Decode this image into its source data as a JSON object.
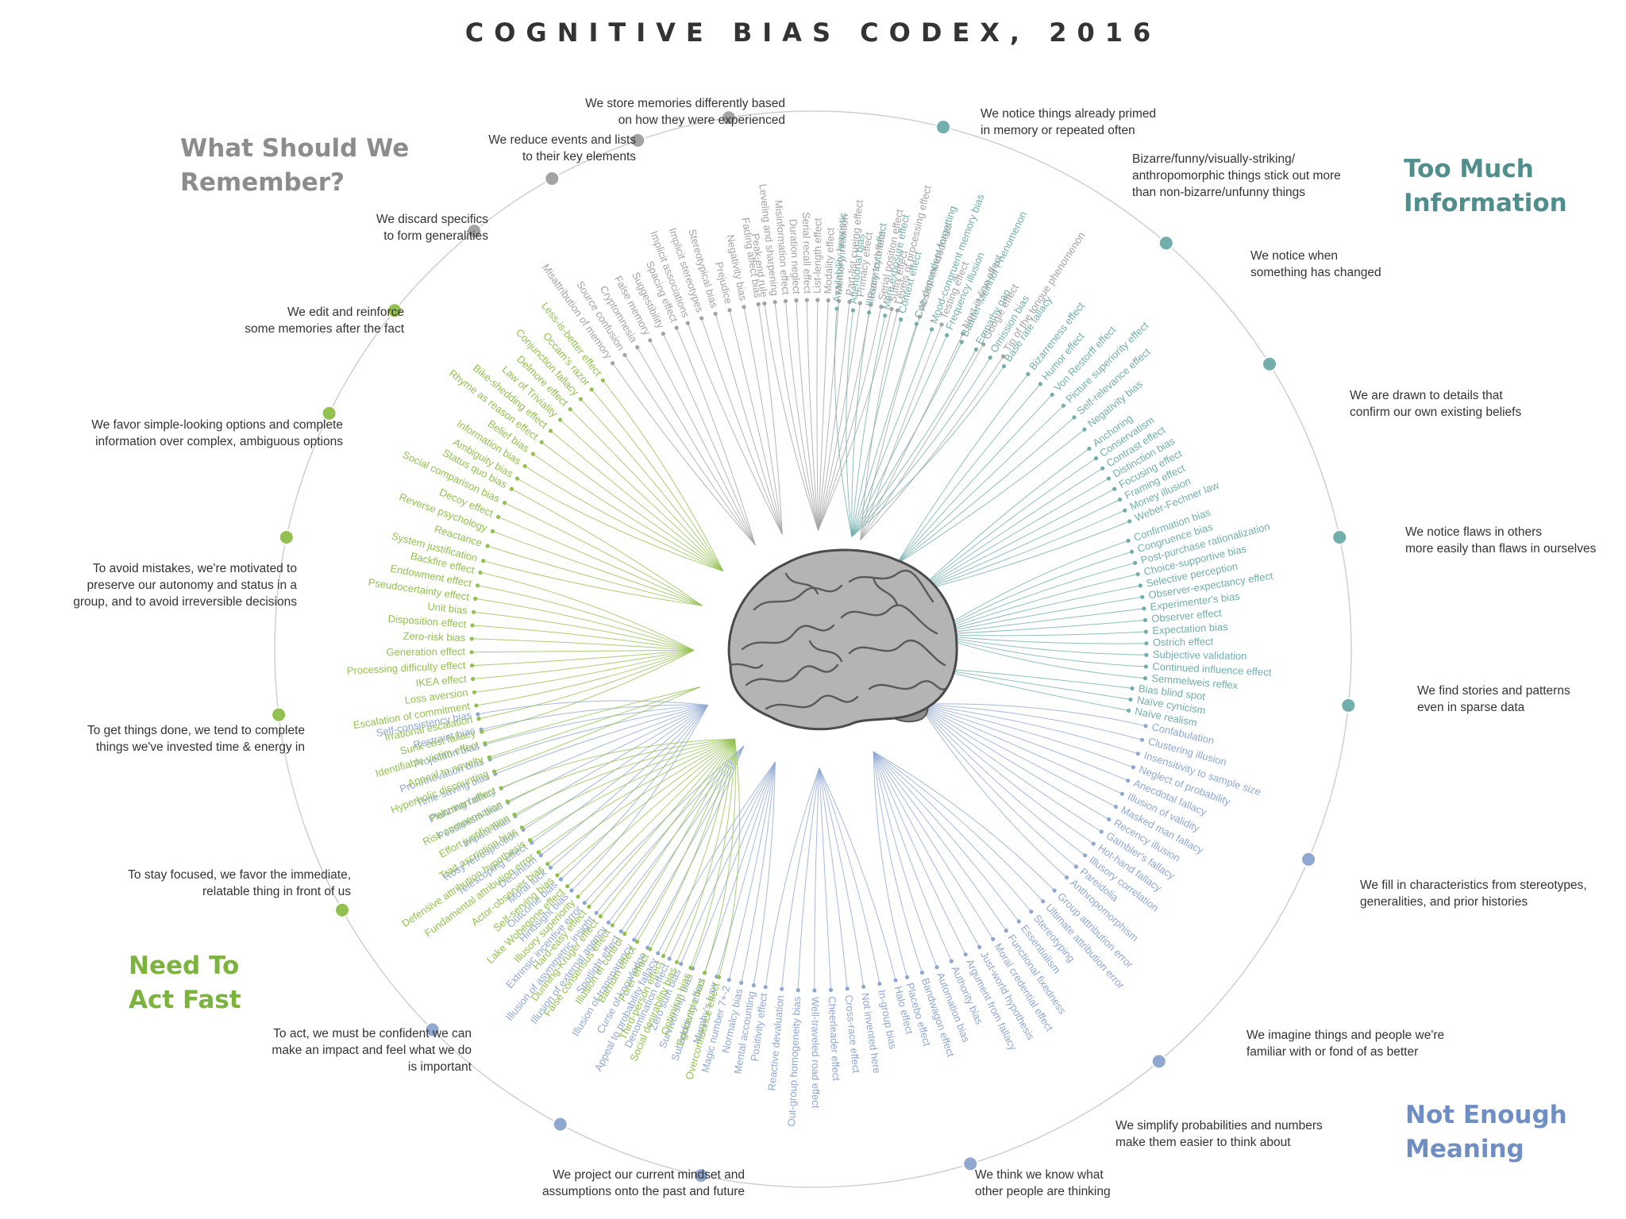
{
  "title": "COGNITIVE BIAS CODEX, 2016",
  "colors": {
    "remember": "#a3a3a3",
    "remember_title": "#8c8c8c",
    "info": "#71aeac",
    "info_title": "#4f8e8c",
    "meaning": "#8fa8d2",
    "meaning_title": "#6f8fc4",
    "act": "#93c14f",
    "act_title": "#7cb33c",
    "text": "#333333"
  },
  "quadrants": {
    "remember": "What Should We\nRemember?",
    "info": "Too Much\nInformation",
    "meaning": "Not Enough\nMeaning",
    "act": "Need To\nAct Fast"
  },
  "groups": [
    {
      "quad": "info",
      "subtitle": "We notice things already primed\nin memory or repeated often",
      "biases": [
        "Availability heuristic",
        "Attentional bias",
        "Illusory truth effect",
        "Mere exposure effect",
        "Context effect",
        "Cue-dependent forgetting",
        "Mood-congruent memory bias",
        "Frequency illusion",
        "Baader-Meinhof Phenomenon",
        "Empathy gap",
        "Omission bias",
        "Base rate fallacy"
      ]
    },
    {
      "quad": "info",
      "subtitle": "Bizarre/funny/visually-striking/\nanthropomorphic things stick out more\nthan non-bizarre/unfunny things",
      "biases": [
        "Bizarreness effect",
        "Humor effect",
        "Von Restorff effect",
        "Picture superiority effect",
        "Self-relevance effect",
        "Negativity bias"
      ]
    },
    {
      "quad": "info",
      "subtitle": "We notice when\nsomething has changed",
      "biases": [
        "Anchoring",
        "Conservatism",
        "Contrast effect",
        "Distinction bias",
        "Focusing effect",
        "Framing effect",
        "Money illusion",
        "Weber-Fechner law"
      ]
    },
    {
      "quad": "info",
      "subtitle": "We are drawn to details that\nconfirm our own existing beliefs",
      "biases": [
        "Confirmation bias",
        "Congruence bias",
        "Post-purchase rationalization",
        "Choice-supportive bias",
        "Selective perception",
        "Observer-expectancy effect",
        "Experimenter's bias",
        "Observer effect",
        "Expectation bias",
        "Ostrich effect",
        "Subjective validation",
        "Continued influence effect",
        "Semmelweis reflex"
      ]
    },
    {
      "quad": "info",
      "subtitle": "We notice flaws in others\nmore easily than flaws in ourselves",
      "biases": [
        "Bias blind spot",
        "Naïve cynicism",
        "Naïve realism"
      ]
    },
    {
      "quad": "meaning",
      "subtitle": "We find stories and patterns\neven in sparse data",
      "biases": [
        "Confabulation",
        "Clustering illusion",
        "Insensitivity to sample size",
        "Neglect of probability",
        "Anecdotal fallacy",
        "Illusion of validity",
        "Masked man fallacy",
        "Recency illusion",
        "Gambler's fallacy",
        "Hot-hand fallacy",
        "Illusory correlation",
        "Pareidolia",
        "Anthropomorphism"
      ]
    },
    {
      "quad": "meaning",
      "subtitle": "We fill in characteristics from stereotypes,\ngeneralities, and prior histories",
      "biases": [
        "Group attribution error",
        "Ultimate attribution error",
        "Stereotyping",
        "Essentialism",
        "Functional fixedness",
        "Moral credential effect",
        "Just-world hypothesis",
        "Argument from fallacy",
        "Authority bias",
        "Automation bias",
        "Bandwagon effect",
        "Placebo effect"
      ]
    },
    {
      "quad": "meaning",
      "subtitle": "We imagine things and people we're\nfamiliar with or fond of as better",
      "biases": [
        "Halo effect",
        "In-group bias",
        "Not invented here",
        "Cross-race effect",
        "Cheerleader effect",
        "Well-traveled road effect",
        "Out-group homogeneity bias",
        "Reactive devaluation",
        "Positivity effect"
      ]
    },
    {
      "quad": "meaning",
      "subtitle": "We simplify probabilities and numbers\nmake them easier to think about",
      "biases": [
        "Mental accounting",
        "Normalcy bias",
        "Magic number 7+-2",
        "Murphy's Law",
        "Subadditivity effect",
        "Survivorship bias",
        "Zero sum bias",
        "Denomination effect",
        "Appeal to probability fallacy"
      ]
    },
    {
      "quad": "meaning",
      "subtitle": "We think we know what\nother people are thinking",
      "biases": [
        "Curse of knowledge",
        "Illusion of transparency",
        "Spotlight effect",
        "Illusion of external agency",
        "Illusion of asymmetric insight",
        "Extrinsic incentive error"
      ]
    },
    {
      "quad": "meaning",
      "subtitle": "We project our current mindset and\nassumptions onto the past and future",
      "biases": [
        "Hindsight bias",
        "Outcome bias",
        "Moral luck",
        "Declinism",
        "Telescoping effect",
        "Rosy retrospection",
        "Impact bias",
        "Pessimism bias",
        "Planning fallacy",
        "Time-saving bias",
        "Pro-innovation bias",
        "Projection bias",
        "Restraint bias",
        "Self-consistency bias"
      ]
    },
    {
      "quad": "act",
      "subtitle": "To act, we must be confident we can\nmake an impact and feel what we do\nis important",
      "biases": [
        "Overconfidence effect",
        "Egocentric bias",
        "Optimism bias",
        "Social desirability bias",
        "Third-person effect",
        "Forer effect",
        "Barnum effect",
        "Illusion of control",
        "False consensus effect",
        "Dunning-Kruger effect",
        "Hard-easy effect",
        "Illusory superiority",
        "Lake Wobegone effect",
        "Self-serving bias",
        "Actor-observer bias",
        "Fundamental attribution error",
        "Defensive attribution hypothesis",
        "Trait ascription bias",
        "Effort justification",
        "Risk compensation",
        "Peltzman effect"
      ]
    },
    {
      "quad": "act",
      "subtitle": "To stay focused, we favor the immediate,\nrelatable thing in front of us",
      "biases": [
        "Hyperbolic discounting",
        "Appeal to novelty",
        "Identifiable victim effect"
      ]
    },
    {
      "quad": "act",
      "subtitle": "To get things done, we tend to complete\nthings we've invested time & energy in",
      "biases": [
        "Sunk cost fallacy",
        "Irrational escalation",
        "Escalation of commitment",
        "Loss aversion",
        "IKEA effect",
        "Processing difficulty effect",
        "Generation effect",
        "Zero-risk bias",
        "Disposition effect",
        "Unit bias",
        "Pseudocertainty effect",
        "Endowment effect",
        "Backfire effect"
      ]
    },
    {
      "quad": "act",
      "subtitle": "To avoid mistakes, we're motivated to\npreserve our autonomy and status in a\ngroup, and to avoid irreversible decisions",
      "biases": [
        "System justification",
        "Reactance",
        "Reverse psychology",
        "Decoy effect",
        "Social comparison bias",
        "Status quo bias"
      ]
    },
    {
      "quad": "act",
      "subtitle": "We favor simple-looking options and complete\ninformation over complex, ambiguous options",
      "biases": [
        "Ambiguity bias",
        "Information bias",
        "Belief bias",
        "Rhyme as reason effect",
        "Bike-shedding effect",
        "Law of Triviality",
        "Delmore effect",
        "Conjunction fallacy",
        "Occam's razor",
        "Less-is-better effect"
      ]
    },
    {
      "quad": "remember",
      "subtitle": "We edit and reinforce\nsome memories after the fact",
      "biases": [
        "Misattribution of memory",
        "Source confusion",
        "Cryptomnesia",
        "False memory",
        "Suggestibility",
        "Spacing effect"
      ]
    },
    {
      "quad": "remember",
      "subtitle": "We discard specifics\nto form generalities",
      "biases": [
        "Implicit associations",
        "Implicit stereotypes",
        "Stereotypical bias",
        "Prejudice",
        "Negativity bias",
        "Fading affect bias"
      ]
    },
    {
      "quad": "remember",
      "subtitle": "We reduce events and lists\nto their key elements",
      "biases": [
        "Peak-end rule",
        "Leveling and sharpening",
        "Misinformation effect",
        "Duration neglect",
        "Serial recall effect",
        "List-length effect",
        "Modality effect",
        "Memory inhibition",
        "Part-list cueing effect",
        "Primacy effect",
        "Recency effect",
        "Serial position effect",
        "Suffix effect"
      ]
    },
    {
      "quad": "remember",
      "subtitle": "We store memories differently based\non how they were experienced",
      "biases": [
        "Levels of processing effect",
        "Absent-mindedness",
        "Testing effect",
        "Next-in-line effect",
        "Google effect",
        "Tip of the tongue phenomenon"
      ]
    }
  ]
}
